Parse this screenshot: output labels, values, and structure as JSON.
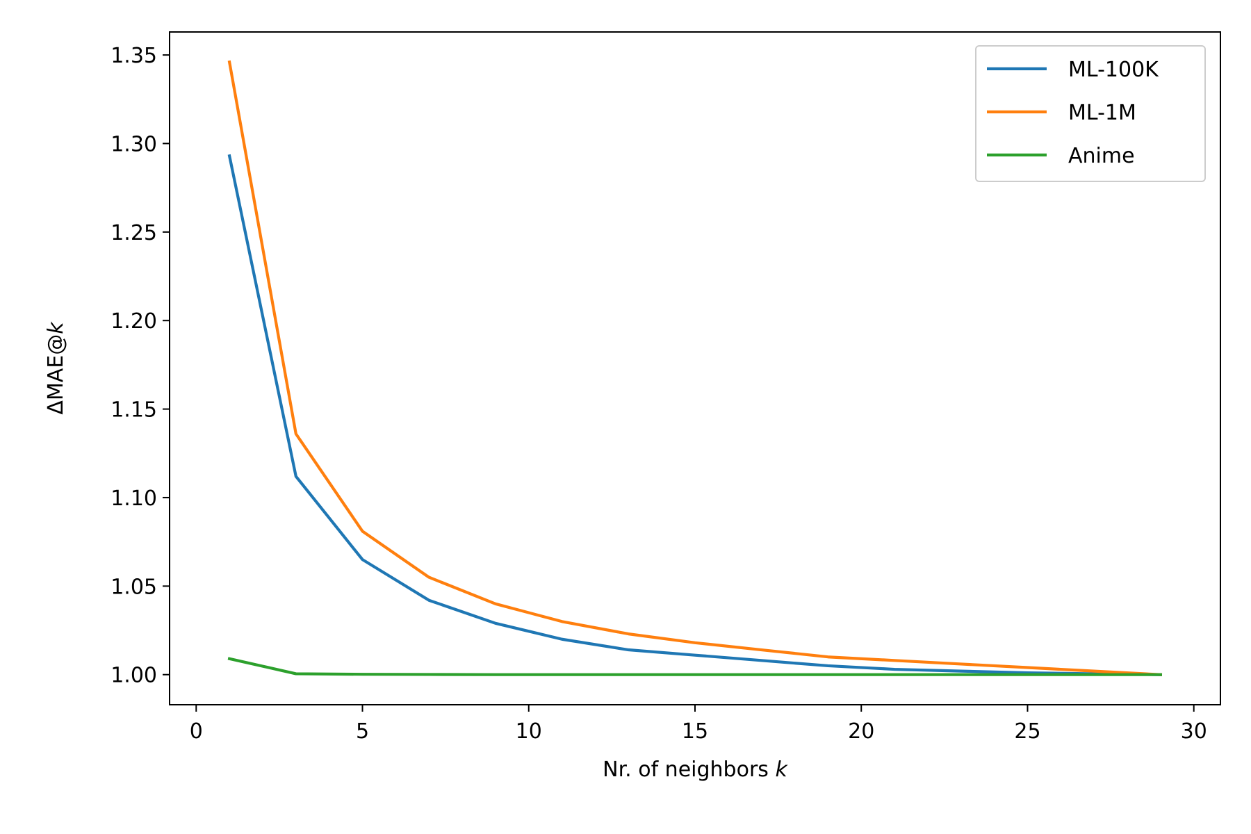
{
  "chart_data": {
    "type": "line",
    "xlabel": "Nr. of neighbors",
    "xlabel_var": "k",
    "ylabel": "ΔMAE@",
    "ylabel_var": "k",
    "xlim": [
      -0.8,
      30.8
    ],
    "ylim": [
      0.983,
      1.363
    ],
    "xticks": [
      0,
      5,
      10,
      15,
      20,
      25,
      30
    ],
    "xtick_labels": [
      "0",
      "5",
      "10",
      "15",
      "20",
      "25",
      "30"
    ],
    "yticks": [
      1.0,
      1.05,
      1.1,
      1.15,
      1.2,
      1.25,
      1.3,
      1.35
    ],
    "ytick_labels": [
      "1.00",
      "1.05",
      "1.10",
      "1.15",
      "1.20",
      "1.25",
      "1.30",
      "1.35"
    ],
    "grid": false,
    "legend_position": "top-right",
    "x": [
      1,
      3,
      5,
      7,
      9,
      11,
      13,
      15,
      17,
      19,
      21,
      23,
      25,
      27,
      29
    ],
    "series": [
      {
        "name": "ML-100K",
        "color": "#1f77b4",
        "values": [
          1.293,
          1.112,
          1.065,
          1.042,
          1.029,
          1.02,
          1.014,
          1.011,
          1.008,
          1.005,
          1.003,
          1.002,
          1.001,
          1.0005,
          1.0
        ]
      },
      {
        "name": "ML-1M",
        "color": "#ff7f0e",
        "values": [
          1.346,
          1.136,
          1.081,
          1.055,
          1.04,
          1.03,
          1.023,
          1.018,
          1.014,
          1.01,
          1.008,
          1.006,
          1.004,
          1.002,
          1.0
        ]
      },
      {
        "name": "Anime",
        "color": "#2ca02c",
        "values": [
          1.009,
          1.0005,
          1.0002,
          1.0001,
          1.0,
          1.0,
          1.0,
          1.0,
          1.0,
          1.0,
          1.0,
          1.0,
          1.0,
          1.0,
          1.0
        ]
      }
    ]
  }
}
